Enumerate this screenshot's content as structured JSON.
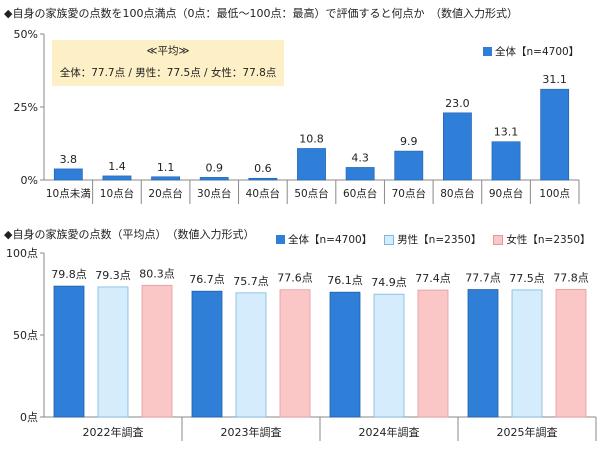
{
  "chart_data": [
    {
      "type": "bar",
      "title": "◆自身の家族愛の点数を100点満点（0点：最低〜100点：最高）で評価すると何点か　（数値入力形式）",
      "categories": [
        "10点未満",
        "10点台",
        "20点台",
        "30点台",
        "40点台",
        "50点台",
        "60点台",
        "70点台",
        "80点台",
        "90点台",
        "100点"
      ],
      "series": [
        {
          "name": "全体【n=4700】",
          "values": [
            3.8,
            1.4,
            1.1,
            0.9,
            0.6,
            10.8,
            4.3,
            9.9,
            23.0,
            13.1,
            31.1
          ],
          "labels": [
            "3.8",
            "1.4",
            "1.1",
            "0.9",
            "0.6",
            "10.8",
            "4.3",
            "9.9",
            "23.0",
            "13.1",
            "31.1"
          ]
        }
      ],
      "ylim": [
        0,
        50
      ],
      "yticks": [
        "0%",
        "25%",
        "50%"
      ],
      "ytick_values": [
        0,
        25,
        50
      ],
      "grid": false,
      "legend": "top-right",
      "annotation": {
        "title": "≪平均≫",
        "text": "全体：77.7点 / 男性：77.5点 / 女性：77.8点"
      }
    },
    {
      "type": "bar",
      "title": "◆自身の家族愛の点数（平均点）　（数値入力形式）",
      "categories": [
        "2022年調査",
        "2023年調査",
        "2024年調査",
        "2025年調査"
      ],
      "series": [
        {
          "name": "全体【n=4700】",
          "values": [
            79.8,
            76.7,
            76.1,
            77.7
          ],
          "labels": [
            "79.8点",
            "76.7点",
            "76.1点",
            "77.7点"
          ]
        },
        {
          "name": "男性【n=2350】",
          "values": [
            79.3,
            75.7,
            74.9,
            77.5
          ],
          "labels": [
            "79.3点",
            "75.7点",
            "74.9点",
            "77.5点"
          ]
        },
        {
          "name": "女性【n=2350】",
          "values": [
            80.3,
            77.6,
            77.4,
            77.8
          ],
          "labels": [
            "80.3点",
            "77.6点",
            "77.4点",
            "77.8点"
          ]
        }
      ],
      "ylim": [
        0,
        100
      ],
      "yticks": [
        "0点",
        "50点",
        "100点"
      ],
      "ytick_values": [
        0,
        50,
        100
      ],
      "grid": false,
      "legend": "top"
    }
  ],
  "colors": {
    "overall": "#2f7fd8",
    "overall_stroke": "#1f5fa8",
    "male": "#d4ecfb",
    "male_stroke": "#7cb8e0",
    "female": "#fbc6c6",
    "female_stroke": "#e49a9a",
    "annotation_bg": "#fdf0c6"
  }
}
